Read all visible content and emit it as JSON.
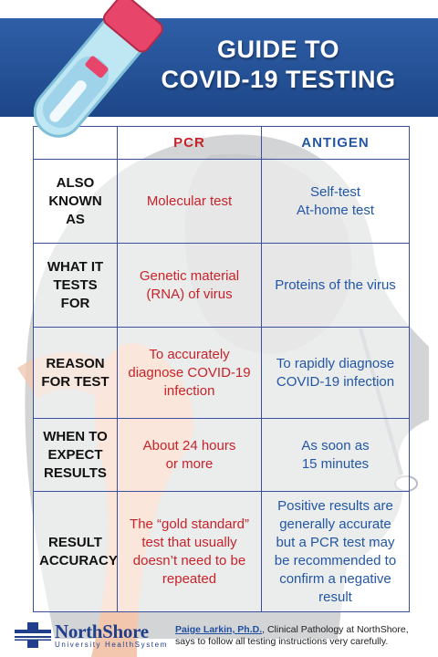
{
  "title": {
    "line1": "GUIDE TO",
    "line2": "COVID-19 TESTING"
  },
  "columns": {
    "pcr": "PCR",
    "antigen": "ANTIGEN"
  },
  "rows": [
    {
      "label": [
        "ALSO",
        "KNOWN AS"
      ],
      "pcr": [
        "Molecular test"
      ],
      "antigen": [
        "Self-test",
        "At-home test"
      ]
    },
    {
      "label": [
        "WHAT IT",
        "TESTS FOR"
      ],
      "pcr": [
        "Genetic material",
        "(RNA) of virus"
      ],
      "antigen": [
        "Proteins of the virus"
      ]
    },
    {
      "label": [
        "REASON",
        "FOR TEST"
      ],
      "pcr": [
        "To accurately",
        "diagnose COVID-19",
        "infection"
      ],
      "antigen": [
        "To rapidly diagnose",
        "COVID-19 infection"
      ]
    },
    {
      "label": [
        "WHEN TO",
        "EXPECT",
        "RESULTS"
      ],
      "pcr": [
        "About 24 hours",
        "or more"
      ],
      "antigen": [
        "As soon as",
        "15 minutes"
      ]
    },
    {
      "label": [
        "RESULT",
        "ACCURACY"
      ],
      "pcr": [
        "The “gold standard”",
        "test that usually",
        "doesn’t need to be",
        "repeated"
      ],
      "antigen": [
        "Positive results are",
        "generally accurate",
        "but a PCR test may",
        "be recommended to",
        "confirm a negative",
        "result"
      ]
    }
  ],
  "logo": {
    "name": "NorthShore",
    "subtitle": "University HealthSystem"
  },
  "credit": {
    "name": "Paige Larkin, Ph.D.",
    "line1_rest": ", Clinical Pathology at NorthShore,",
    "line2": "says to follow all testing instructions very carefully."
  },
  "colors": {
    "header_blue": "#2a559c",
    "pcr_red": "#c8232a",
    "antigen_blue": "#2257a5",
    "grid": "#3a4fa0"
  }
}
